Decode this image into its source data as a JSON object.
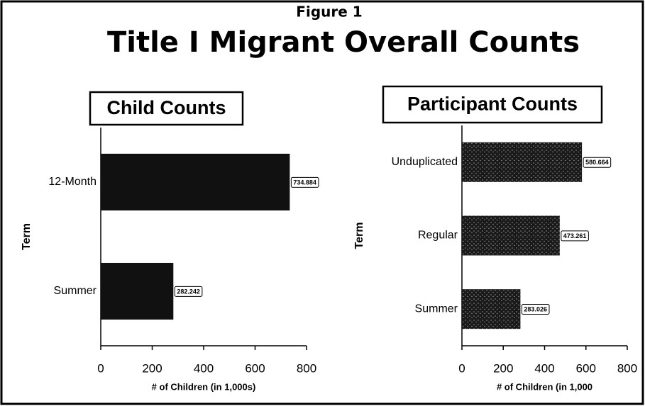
{
  "figure": "Figure 1",
  "title": "Title I Migrant Overall Counts",
  "chart_data": [
    {
      "type": "bar",
      "orientation": "horizontal",
      "title": "Child Counts",
      "categories": [
        "12-Month",
        "Summer"
      ],
      "values": [
        734.884,
        282.242
      ],
      "color": "#111111",
      "xlim": [
        0,
        800
      ],
      "xticks": [
        0,
        200,
        400,
        600,
        800
      ],
      "xlabel": "# of Children (in 1,000s)",
      "ylabel": "Term"
    },
    {
      "type": "bar",
      "orientation": "horizontal",
      "title": "Participant Counts",
      "categories": [
        "Unduplicated",
        "Regular",
        "Summer"
      ],
      "values": [
        580.664,
        473.261,
        283.026
      ],
      "color": "#1a1a1a",
      "xlim": [
        0,
        800
      ],
      "xticks": [
        0,
        200,
        400,
        600,
        800
      ],
      "xlabel": "# of Children (in 1,000",
      "ylabel": "Term"
    }
  ]
}
